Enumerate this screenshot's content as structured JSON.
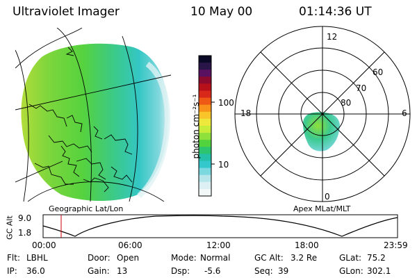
{
  "header": {
    "instrument": "Ultraviolet Imager",
    "date": "10 May 00",
    "time": "01:14:36 UT"
  },
  "colorbar": {
    "label": "photon cm⁻²s⁻¹",
    "ticks": [
      "100",
      "10"
    ],
    "colors": [
      "#0a0a26",
      "#2a1548",
      "#5a1060",
      "#8c0a2e",
      "#b8101a",
      "#d8281a",
      "#ee5a16",
      "#f8921a",
      "#f8c42a",
      "#eee83c",
      "#c8ec3a",
      "#8ee03a",
      "#52d23c",
      "#2cc46e",
      "#24c0a8",
      "#34c8cc",
      "#7ad8de",
      "#b6e6ea",
      "#dceff2",
      "#f2f8f8"
    ]
  },
  "left_panel": {
    "caption": "Geographic Lat/Lon"
  },
  "right_panel": {
    "caption": "Apex MLat/MLT",
    "mlt_labels": {
      "top": "12",
      "left": "18",
      "right": "6",
      "bottom": "0"
    },
    "mlat_labels": [
      "60",
      "70",
      "80"
    ]
  },
  "timeline": {
    "ylabel": "GC Alt",
    "yticks": [
      "9.0",
      "1.8"
    ],
    "xticks": [
      "00:00",
      "06:00",
      "12:00",
      "18:00",
      "23:59"
    ],
    "marker_time": "01:14"
  },
  "info": {
    "flt_label": "Flt:",
    "flt_value": "LBHL",
    "ip_label": "IP:",
    "ip_value": "36.0",
    "door_label": "Door:",
    "door_value": "Open",
    "gain_label": "Gain:",
    "gain_value": "13",
    "mode_label": "Mode:",
    "mode_value": "Normal",
    "dsp_label": "Dsp:",
    "dsp_value": "-5.6",
    "gcalt_label": "GC Alt:",
    "gcalt_value": "3.2 Re",
    "seq_label": "Seq:",
    "seq_value": "39",
    "glat_label": "GLat:",
    "glat_value": "75.2",
    "glon_label": "GLon:",
    "glon_value": "302.1"
  }
}
